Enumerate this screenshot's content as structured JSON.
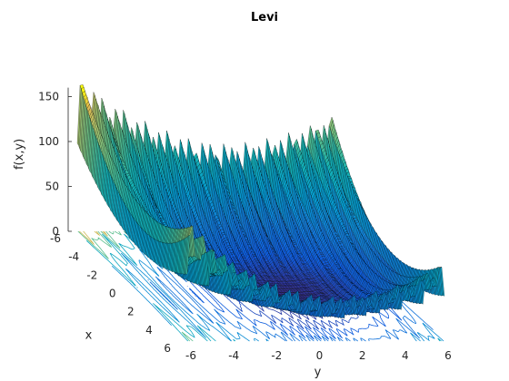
{
  "chart_data": {
    "type": "surface3d",
    "title": "Levi",
    "xlabel": "x",
    "ylabel": "y",
    "zlabel": "f(x,y)",
    "xlim": [
      -6,
      6
    ],
    "ylim": [
      -6,
      6
    ],
    "zlim": [
      0,
      160
    ],
    "x_ticks": [
      "-6",
      "-4",
      "-2",
      "0",
      "2",
      "4",
      "6"
    ],
    "y_ticks": [
      "-6",
      "-4",
      "-2",
      "0",
      "2",
      "4",
      "6"
    ],
    "z_ticks": [
      "0",
      "50",
      "100",
      "150"
    ],
    "grid": false,
    "colormap": "parula",
    "contour_projection": true
  }
}
